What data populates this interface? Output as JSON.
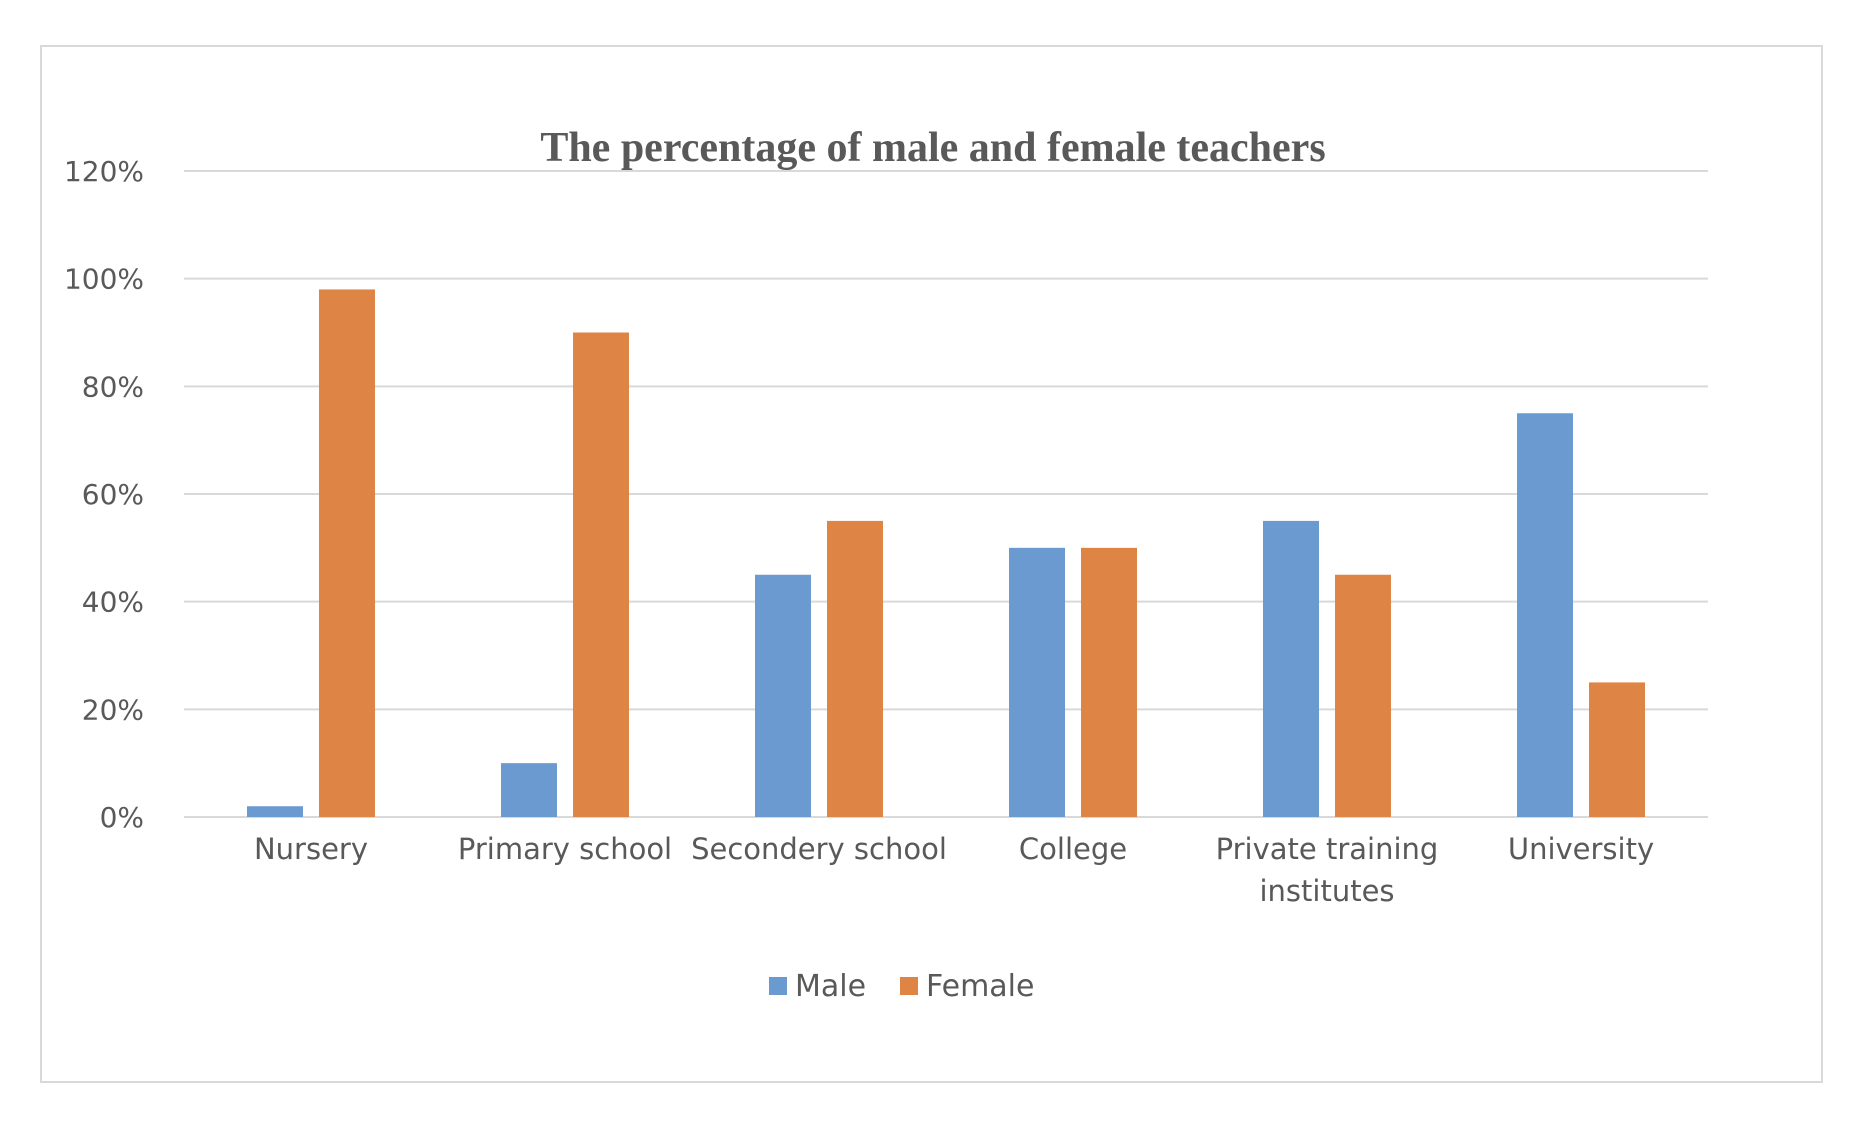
{
  "chart_data": {
    "type": "bar",
    "title": "The percentage of male and female teachers",
    "xlabel": "",
    "ylabel": "",
    "categories": [
      [
        "Nursery"
      ],
      [
        "Primary school"
      ],
      [
        "Secondery school"
      ],
      [
        "College"
      ],
      [
        "Private training",
        "institutes"
      ],
      [
        "University"
      ]
    ],
    "series": [
      {
        "name": "Male",
        "color": "#6a9ad0",
        "values": [
          0.02,
          0.1,
          0.45,
          0.5,
          0.55,
          0.75
        ]
      },
      {
        "name": "Female",
        "color": "#de8444",
        "values": [
          0.98,
          0.9,
          0.55,
          0.5,
          0.45,
          0.25
        ]
      }
    ],
    "ylim": [
      0,
      1.2
    ],
    "yticks": [
      0,
      0.2,
      0.4,
      0.6,
      0.8,
      1.0,
      1.2
    ],
    "ytick_labels": [
      "0%",
      "20%",
      "40%",
      "60%",
      "80%",
      "100%",
      "120%"
    ],
    "grid": true,
    "gridline_color": "#d9d9d9",
    "legend_position": "bottom"
  }
}
